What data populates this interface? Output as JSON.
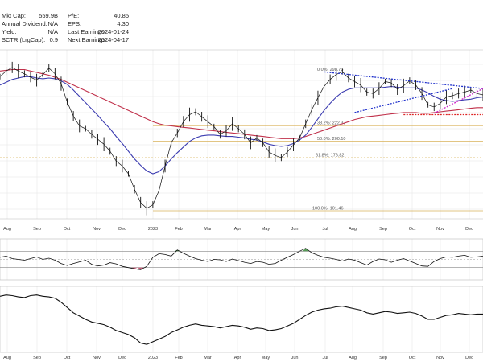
{
  "header": {
    "stats": [
      {
        "label": "Mkt Cap:",
        "value": "559.9B"
      },
      {
        "label": "Annual Dividend:",
        "value": "N/A"
      },
      {
        "label": "Yield:",
        "value": "N/A"
      },
      {
        "label": "SCTR (LrgCap):",
        "value": "0.9"
      },
      {
        "label": "P/E:",
        "value": "40.85"
      },
      {
        "label": "EPS:",
        "value": "4.30"
      },
      {
        "label": "Last Earnings:",
        "value": "2024-01-24"
      },
      {
        "label": "Next Earnings:",
        "value": "2024-04-17"
      }
    ]
  },
  "colors": {
    "price": "#111111",
    "ma_short": "#3b3bb0",
    "ma_long": "#c0304a",
    "fib": "#d9b25a",
    "trend_blue": "#2233cc",
    "trend_magenta": "#cc22cc",
    "support_red": "#dd2222",
    "osc_green": "#3a8a3a",
    "osc_red": "#c04060",
    "grid": "#e6e6e6"
  },
  "chart_data": [
    {
      "type": "line",
      "panel": "price",
      "x_tick_labels": [
        "Aug",
        "Sep",
        "Oct",
        "Nov",
        "Dec",
        "2023",
        "Feb",
        "Mar",
        "Apr",
        "May",
        "Jun",
        "Jul",
        "Aug",
        "Sep",
        "Oct",
        "Nov",
        "Dec"
      ],
      "ylim": [
        90,
        330
      ],
      "fib_levels": [
        {
          "label": "0.0%: 298.73",
          "value": 298.73
        },
        {
          "label": "38.2%: 222.37",
          "value": 222.37
        },
        {
          "label": "50.0%: 200.10",
          "value": 200.1
        },
        {
          "label": "61.8%: 176.82",
          "value": 176.82
        },
        {
          "label": "100.0%: 101.46",
          "value": 101.46
        }
      ],
      "series": [
        {
          "values": [
            292,
            300,
            305,
            300,
            296,
            291,
            287,
            295,
            304,
            296,
            282,
            256,
            236,
            222,
            218,
            210,
            203,
            196,
            186,
            172,
            165,
            154,
            132,
            113,
            105,
            110,
            130,
            165,
            198,
            212,
            228,
            238,
            242,
            235,
            228,
            221,
            210,
            215,
            225,
            218,
            210,
            198,
            205,
            198,
            185,
            180,
            177,
            185,
            195,
            205,
            225,
            245,
            262,
            278,
            288,
            295,
            299,
            290,
            285,
            280,
            270,
            268,
            275,
            285,
            283,
            274,
            279,
            286,
            280,
            268,
            252,
            249,
            254,
            263,
            265,
            268,
            270,
            273,
            268,
            266
          ]
        },
        {
          "values": [
            280,
            284,
            288,
            290,
            292,
            292,
            290,
            289,
            290,
            289,
            286,
            281,
            273,
            264,
            255,
            246,
            237,
            227,
            218,
            207,
            197,
            186,
            175,
            166,
            158,
            154,
            157,
            165,
            175,
            184,
            192,
            200,
            205,
            208,
            209,
            209,
            208,
            207,
            207,
            206,
            205,
            203,
            202,
            199,
            196,
            194,
            193,
            194,
            197,
            202,
            209,
            220,
            232,
            244,
            254,
            263,
            270,
            274,
            276,
            276,
            276,
            276,
            276,
            277,
            278,
            277,
            276,
            276,
            276,
            273,
            269,
            264,
            260,
            258,
            257,
            258,
            259,
            260,
            262,
            263
          ]
        },
        {
          "values": [
            300,
            301,
            302,
            302,
            302,
            300,
            298,
            296,
            294,
            291,
            288,
            284,
            280,
            276,
            272,
            268,
            264,
            260,
            256,
            252,
            248,
            244,
            240,
            236,
            232,
            228,
            225,
            223,
            222,
            221,
            220,
            219,
            218,
            217,
            216,
            215,
            214,
            213,
            212,
            211,
            210,
            209,
            208,
            207,
            206,
            205,
            204,
            204,
            204,
            205,
            207,
            210,
            213,
            216,
            219,
            222,
            225,
            228,
            231,
            233,
            235,
            236,
            237,
            238,
            239,
            240,
            241,
            241,
            241,
            240,
            240,
            241,
            242,
            243,
            244,
            245,
            246,
            247,
            248,
            248
          ]
        }
      ],
      "annotations": [
        {
          "type": "trendline",
          "color": "blue",
          "from": {
            "x": 53,
            "y": 298.73
          },
          "to": {
            "x": 79,
            "y": 275
          }
        },
        {
          "type": "trendline",
          "color": "blue",
          "from": {
            "x": 58,
            "y": 241
          },
          "to": {
            "x": 74,
            "y": 275
          }
        },
        {
          "type": "trendline",
          "color": "magenta",
          "from": {
            "x": 71,
            "y": 240
          },
          "to": {
            "x": 79,
            "y": 275
          }
        },
        {
          "type": "support",
          "color": "red",
          "value": 238,
          "from_x": 66,
          "to_x": 79
        }
      ]
    },
    {
      "type": "area",
      "panel": "oscillator",
      "ylim": [
        0,
        100
      ],
      "bands": [
        70,
        50,
        30
      ],
      "values": [
        55,
        58,
        52,
        50,
        48,
        52,
        56,
        50,
        53,
        48,
        40,
        35,
        40,
        44,
        48,
        38,
        34,
        36,
        42,
        39,
        33,
        30,
        27,
        25,
        33,
        55,
        64,
        62,
        58,
        73,
        65,
        58,
        52,
        48,
        45,
        50,
        49,
        45,
        51,
        47,
        43,
        40,
        45,
        43,
        38,
        40,
        48,
        55,
        62,
        70,
        77,
        66,
        60,
        55,
        53,
        50,
        46,
        51,
        48,
        42,
        36,
        45,
        51,
        49,
        43,
        48,
        52,
        46,
        40,
        34,
        33,
        45,
        52,
        56,
        55,
        58,
        60,
        55,
        56,
        58
      ]
    },
    {
      "type": "line",
      "panel": "relative",
      "x_tick_labels": [
        "Aug",
        "Sep",
        "Oct",
        "Nov",
        "Dec",
        "2023",
        "Feb",
        "Mar",
        "Apr",
        "May",
        "Jun",
        "Jul",
        "Aug",
        "Sep",
        "Oct",
        "Nov",
        "Dec"
      ],
      "ylim": [
        0,
        100
      ],
      "values": [
        85,
        87,
        86,
        84,
        83,
        86,
        87,
        85,
        84,
        82,
        76,
        68,
        60,
        55,
        50,
        46,
        44,
        42,
        38,
        33,
        30,
        27,
        22,
        14,
        12,
        16,
        20,
        24,
        30,
        34,
        38,
        41,
        43,
        41,
        40,
        39,
        37,
        39,
        41,
        40,
        38,
        35,
        37,
        36,
        33,
        34,
        36,
        40,
        44,
        50,
        56,
        61,
        64,
        66,
        67,
        69,
        70,
        68,
        66,
        64,
        60,
        58,
        60,
        62,
        61,
        59,
        60,
        61,
        59,
        55,
        50,
        50,
        53,
        56,
        57,
        59,
        58,
        57,
        58,
        58
      ]
    }
  ]
}
